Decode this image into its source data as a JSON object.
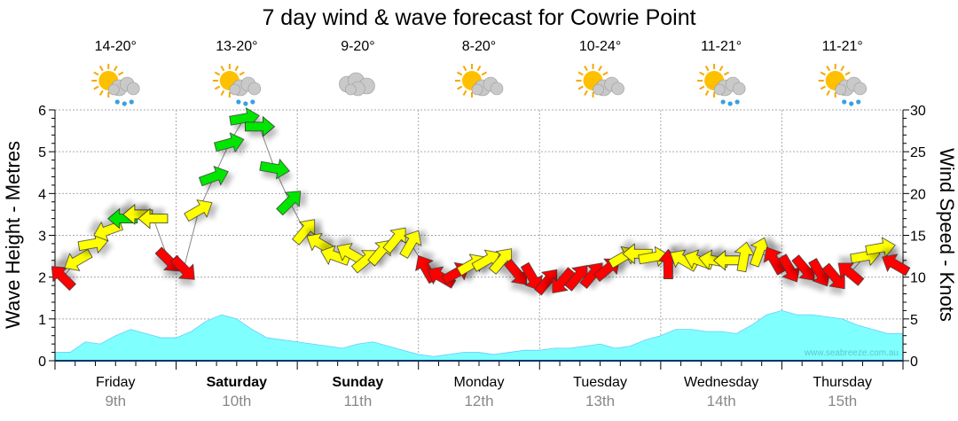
{
  "chart_data": {
    "type": "line",
    "title": "7 day wind & wave forecast for Cowrie Point",
    "ylabel_left": "Wave Height - Metres",
    "ylabel_right": "Wind Speed - Knots",
    "ylim_left": [
      0,
      6
    ],
    "ylim_right": [
      0,
      30
    ],
    "yticks_left": [
      "0",
      "1",
      "2",
      "3",
      "4",
      "5",
      "6"
    ],
    "yticks_right": [
      "0",
      "5",
      "10",
      "15",
      "20",
      "25",
      "30"
    ],
    "grid": true,
    "watermark": "www.seabreeze.com.au",
    "days": [
      {
        "name": "Friday",
        "date": "9th",
        "bold": false,
        "temp": "14-20°",
        "icon": "sun-cloud-rain-icon"
      },
      {
        "name": "Saturday",
        "date": "10th",
        "bold": true,
        "temp": "13-20°",
        "icon": "sun-cloud-rain-icon"
      },
      {
        "name": "Sunday",
        "date": "11th",
        "bold": true,
        "temp": "9-20°",
        "icon": "cloud-icon"
      },
      {
        "name": "Monday",
        "date": "12th",
        "bold": false,
        "temp": "8-20°",
        "icon": "sun-cloud-icon"
      },
      {
        "name": "Tuesday",
        "date": "13th",
        "bold": false,
        "temp": "10-24°",
        "icon": "sun-cloud-icon"
      },
      {
        "name": "Wednesday",
        "date": "14th",
        "bold": false,
        "temp": "11-21°",
        "icon": "sun-cloud-rain-icon"
      },
      {
        "name": "Thursday",
        "date": "15th",
        "bold": false,
        "temp": "11-21°",
        "icon": "sun-cloud-drizzle-icon"
      }
    ],
    "hours_step": 3,
    "wave_height_m": [
      0.2,
      0.2,
      0.45,
      0.4,
      0.6,
      0.75,
      0.65,
      0.55,
      0.55,
      0.7,
      0.95,
      1.1,
      1.0,
      0.75,
      0.55,
      0.5,
      0.45,
      0.4,
      0.35,
      0.3,
      0.4,
      0.45,
      0.35,
      0.25,
      0.15,
      0.1,
      0.15,
      0.2,
      0.2,
      0.15,
      0.2,
      0.25,
      0.25,
      0.3,
      0.3,
      0.35,
      0.4,
      0.3,
      0.35,
      0.5,
      0.6,
      0.75,
      0.75,
      0.7,
      0.7,
      0.65,
      0.85,
      1.1,
      1.2,
      1.1,
      1.1,
      1.05,
      1.0,
      0.85,
      0.75,
      0.65
    ],
    "wind_knots": [
      10,
      12,
      14,
      15.6,
      17,
      17.5,
      17,
      12,
      11,
      18,
      22,
      26,
      29,
      28,
      23,
      19,
      15.5,
      14,
      12.5,
      12.8,
      12,
      13,
      14.5,
      14,
      11,
      10,
      10.5,
      11.5,
      12,
      12,
      10.5,
      10,
      9.5,
      9.5,
      10,
      10.3,
      11,
      12.4,
      12.8,
      12.4,
      11.5,
      12,
      12,
      12,
      12,
      12.4,
      13,
      12,
      11,
      11,
      10.5,
      10,
      10.5,
      12.5,
      13.5,
      11.5
    ],
    "wind_dir_deg": [
      315,
      240,
      80,
      250,
      270,
      270,
      270,
      135,
      135,
      60,
      70,
      75,
      80,
      90,
      100,
      45,
      40,
      300,
      290,
      300,
      50,
      40,
      40,
      30,
      330,
      300,
      60,
      60,
      60,
      40,
      140,
      150,
      40,
      220,
      40,
      40,
      50,
      60,
      270,
      80,
      0,
      300,
      290,
      280,
      270,
      10,
      20,
      330,
      150,
      140,
      150,
      140,
      310,
      80,
      80,
      300
    ],
    "wind_color": [
      "red",
      "yellow",
      "yellow",
      "yellow",
      "green",
      "yellow",
      "yellow",
      "red",
      "red",
      "yellow",
      "green",
      "green",
      "green",
      "green",
      "green",
      "green",
      "yellow",
      "yellow",
      "yellow",
      "yellow",
      "yellow",
      "yellow",
      "yellow",
      "yellow",
      "red",
      "red",
      "red",
      "yellow",
      "yellow",
      "yellow",
      "red",
      "red",
      "red",
      "red",
      "red",
      "red",
      "red",
      "yellow",
      "yellow",
      "yellow",
      "red",
      "yellow",
      "yellow",
      "yellow",
      "yellow",
      "yellow",
      "yellow",
      "red",
      "red",
      "red",
      "red",
      "red",
      "red",
      "yellow",
      "yellow",
      "red"
    ],
    "colors": {
      "red": "#ff0000",
      "yellow": "#ffff00",
      "green": "#00e600",
      "wave": "#80ffff"
    }
  }
}
